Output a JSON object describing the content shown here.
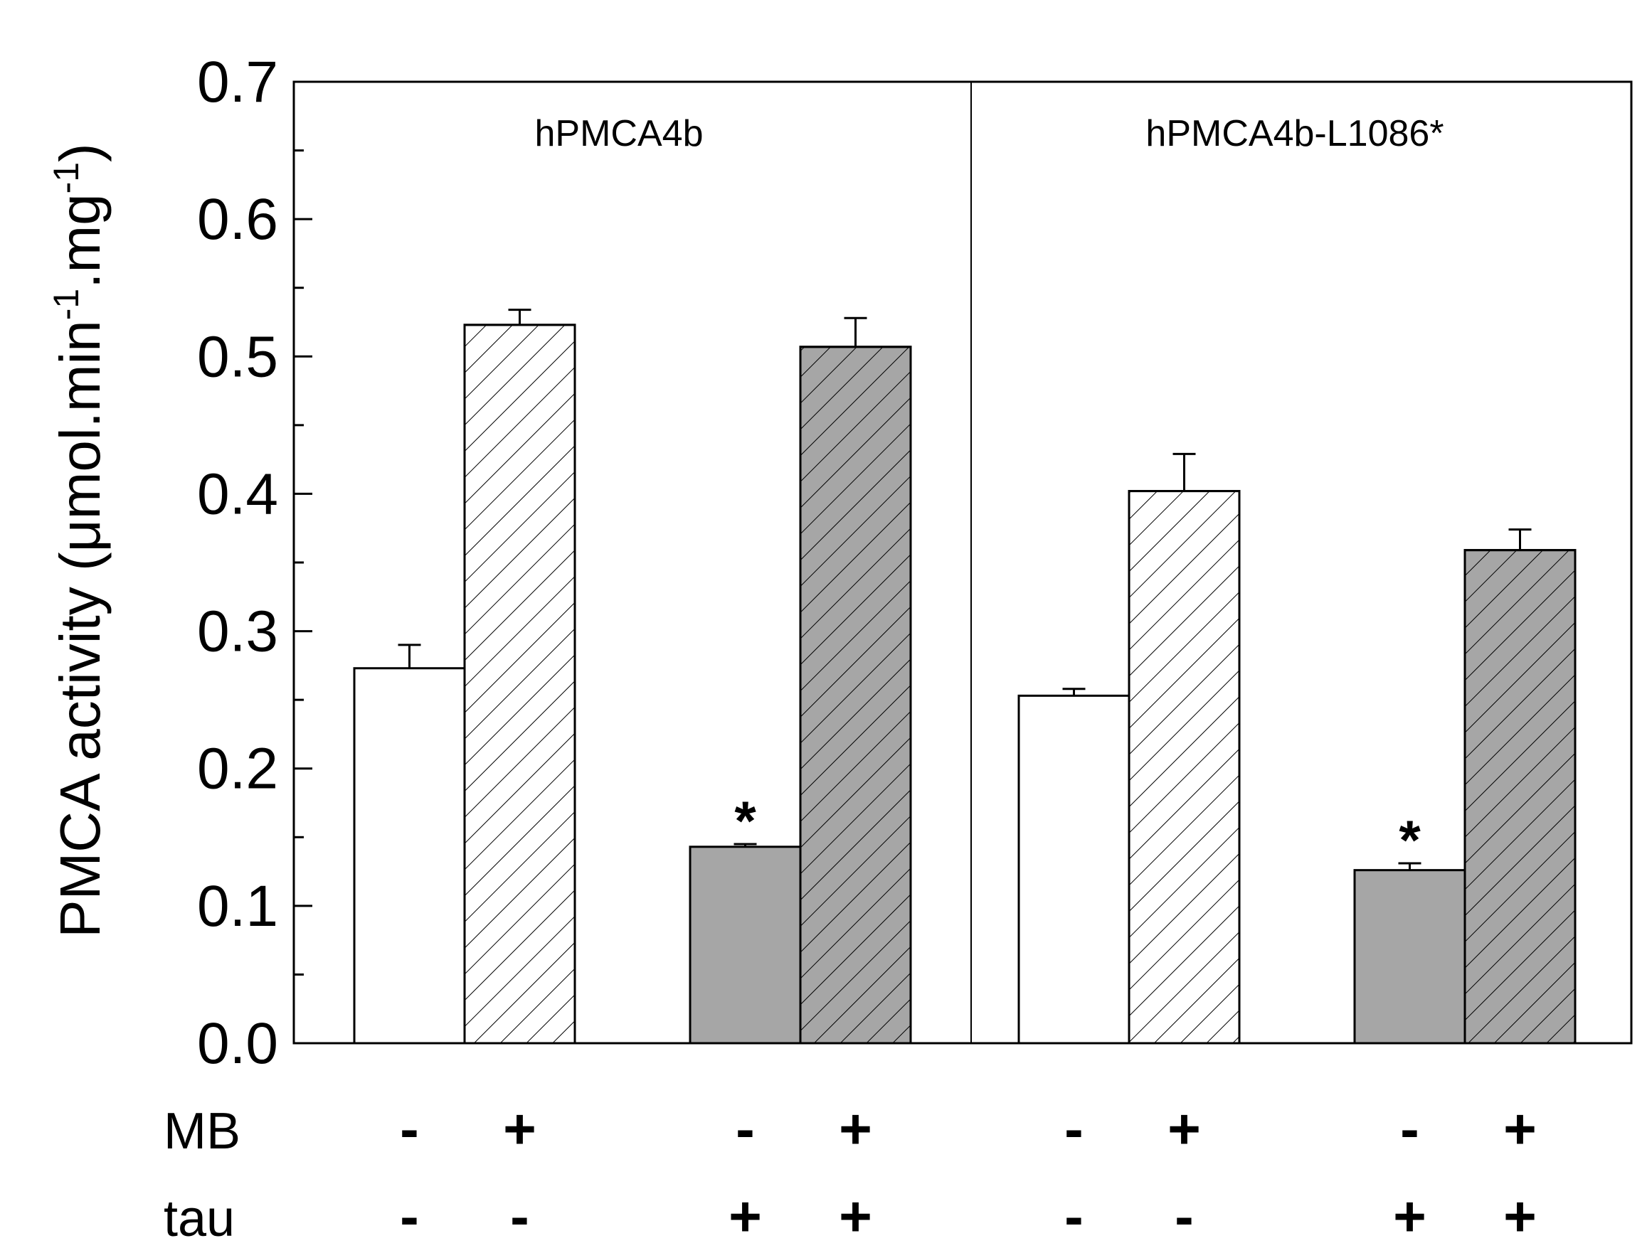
{
  "chart_data": {
    "type": "bar",
    "title": "",
    "xlabel": "",
    "ylabel": "PMCA activity (μmol.min",
    "ylabel_sup1": "-1",
    "ylabel_mid": ".mg",
    "ylabel_sup2": "-1",
    "ylabel_end": ")",
    "ylim": [
      0,
      0.7
    ],
    "yticks": [
      "0.0",
      "0.1",
      "0.2",
      "0.3",
      "0.4",
      "0.5",
      "0.6",
      "0.7"
    ],
    "ytick_values": [
      0,
      0.1,
      0.2,
      0.3,
      0.4,
      0.5,
      0.6,
      0.7
    ],
    "panels": [
      {
        "name": "hPMCA4b",
        "bars": [
          {
            "value": 0.273,
            "error": 0.017,
            "mb": "-",
            "tau": "-",
            "fill": "#ffffff",
            "hatched": false,
            "star": ""
          },
          {
            "value": 0.523,
            "error": 0.011,
            "mb": "+",
            "tau": "-",
            "fill": "#ffffff",
            "hatched": true,
            "star": ""
          },
          {
            "value": 0.143,
            "error": 0.002,
            "mb": "-",
            "tau": "+",
            "fill": "#a6a6a6",
            "hatched": false,
            "star": "*"
          },
          {
            "value": 0.507,
            "error": 0.021,
            "mb": "+",
            "tau": "+",
            "fill": "#a6a6a6",
            "hatched": true,
            "star": ""
          }
        ]
      },
      {
        "name": "hPMCA4b-L1086*",
        "bars": [
          {
            "value": 0.253,
            "error": 0.005,
            "mb": "-",
            "tau": "-",
            "fill": "#ffffff",
            "hatched": false,
            "star": ""
          },
          {
            "value": 0.402,
            "error": 0.027,
            "mb": "+",
            "tau": "-",
            "fill": "#ffffff",
            "hatched": true,
            "star": ""
          },
          {
            "value": 0.126,
            "error": 0.005,
            "mb": "-",
            "tau": "+",
            "fill": "#a6a6a6",
            "hatched": false,
            "star": "*"
          },
          {
            "value": 0.359,
            "error": 0.015,
            "mb": "+",
            "tau": "+",
            "fill": "#a6a6a6",
            "hatched": true,
            "star": ""
          }
        ]
      }
    ],
    "row_labels": {
      "mb": "MB",
      "tau": "tau"
    }
  }
}
